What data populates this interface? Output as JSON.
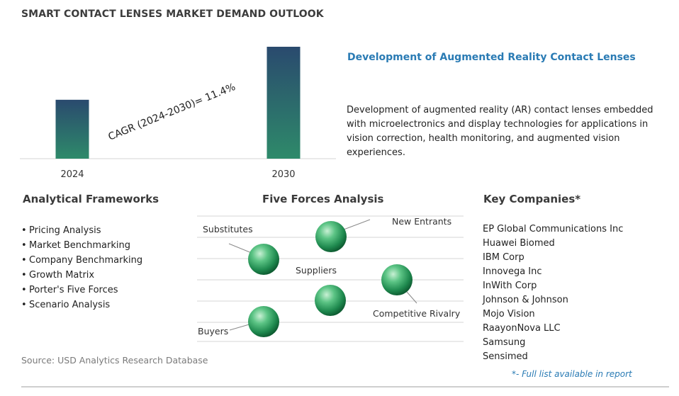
{
  "title": "SMART CONTACT LENSES MARKET DEMAND OUTLOOK",
  "chart_data": {
    "type": "bar",
    "categories": [
      "2024",
      "2030"
    ],
    "values": [
      1.0,
      1.9
    ],
    "annotation": "CAGR (2024-2030)=  11.4%",
    "colors": {
      "bar_top": "#2a4a6e",
      "bar_bottom": "#2e8a6a"
    }
  },
  "development": {
    "title": "Development of Augmented Reality Contact Lenses",
    "text": "Development of augmented reality (AR) contact lenses embedded with microelectronics and display technologies for applications in vision correction, health monitoring, and augmented vision experiences."
  },
  "frameworks": {
    "title": "Analytical Frameworks",
    "items": [
      "Pricing Analysis",
      "Market Benchmarking",
      "Company Benchmarking",
      "Growth Matrix",
      "Porter's Five Forces",
      "Scenario Analysis"
    ]
  },
  "five_forces": {
    "title": "Five Forces Analysis",
    "labels": {
      "new_entrants": "New Entrants",
      "substitutes": "Substitutes",
      "suppliers": "Suppliers",
      "competitive_rivalry": "Competitive Rivalry",
      "buyers": "Buyers"
    }
  },
  "companies": {
    "title": "Key Companies*",
    "items": [
      "EP Global Communications Inc",
      "Huawei Biomed",
      "IBM Corp",
      "Innovega Inc",
      "InWith Corp",
      "Johnson & Johnson",
      "Mojo Vision",
      "RaayonNova LLC",
      "Samsung",
      "Sensimed"
    ],
    "footnote": "*- Full list available in report"
  },
  "source": "Source: USD Analytics Research Database"
}
